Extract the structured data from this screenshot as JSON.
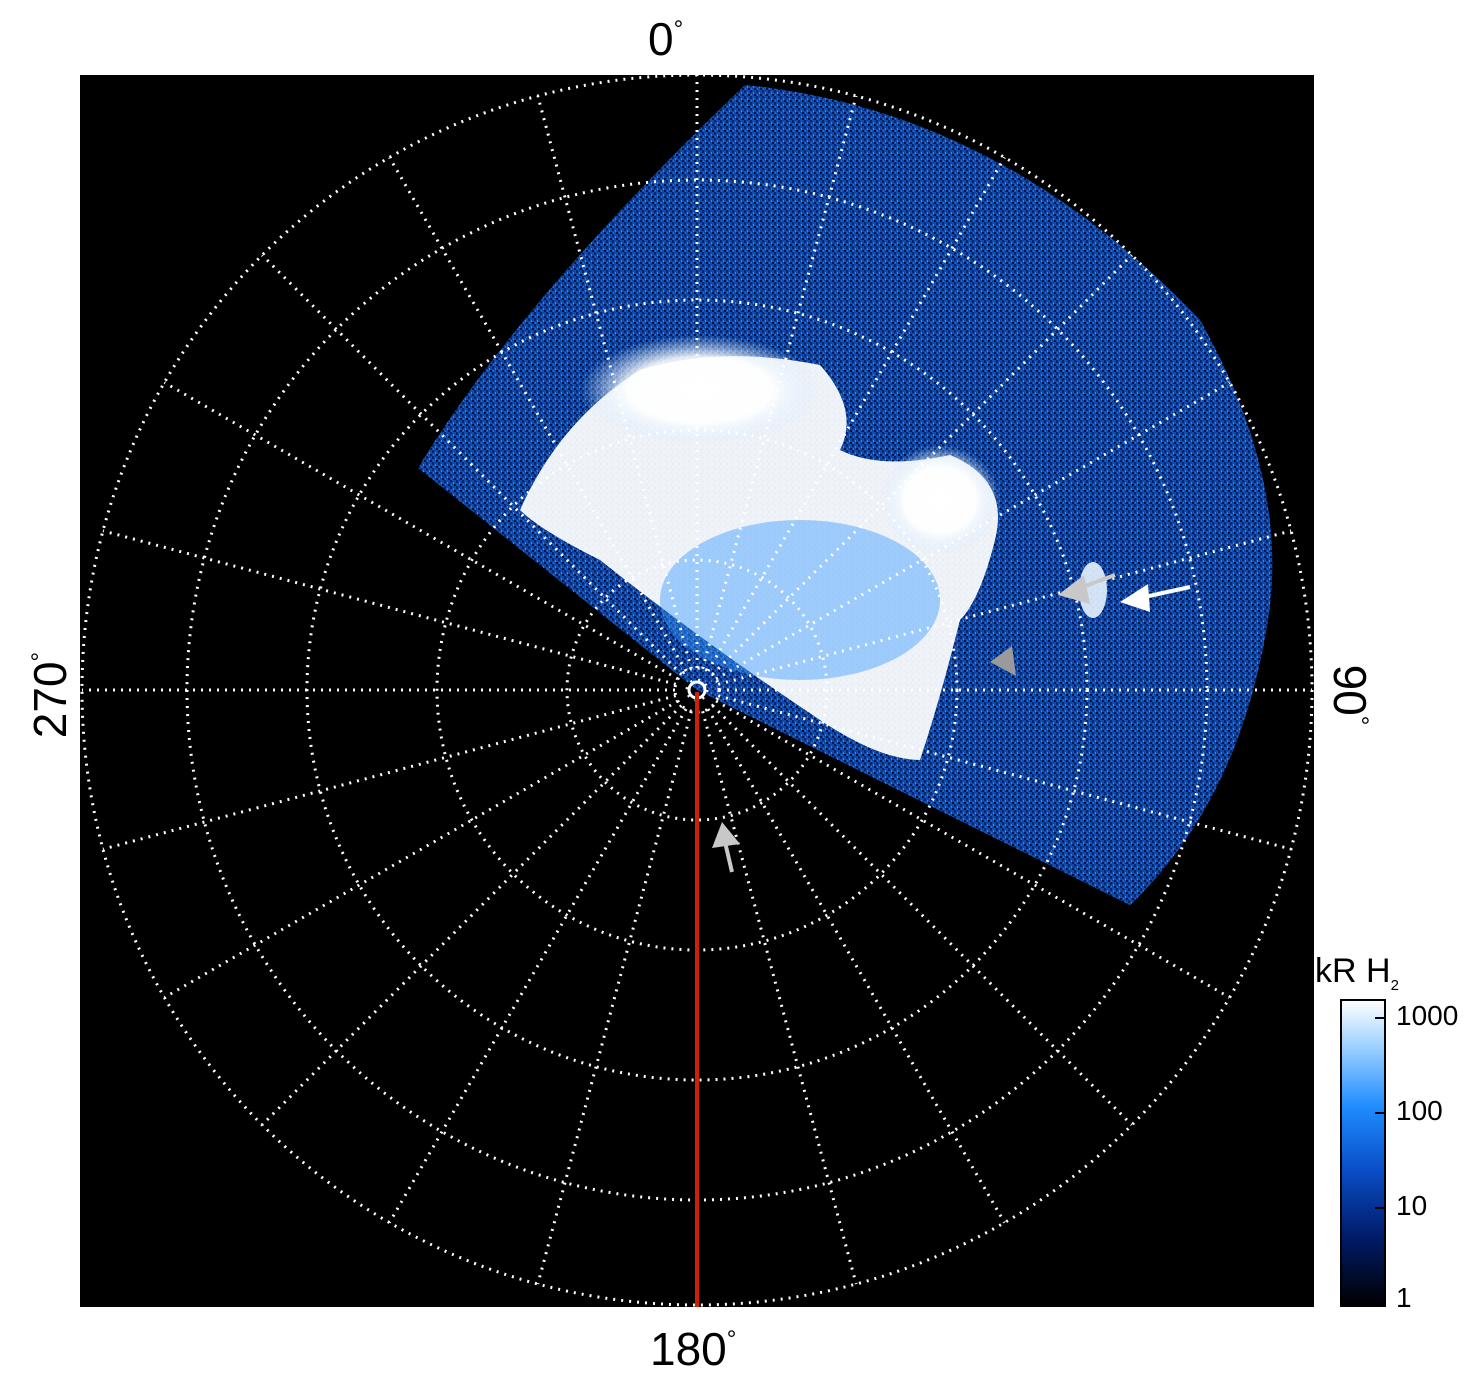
{
  "axis_labels": {
    "top": "0",
    "right": "90",
    "bottom": "180",
    "left": "270",
    "degree_symbol": "°"
  },
  "colorbar": {
    "title": "kR H",
    "title_sub": "2",
    "ticks": [
      "1000",
      "100",
      "10",
      "1"
    ],
    "scale": "log",
    "range": [
      1,
      1500
    ],
    "colors": [
      "#000000",
      "#001a66",
      "#0a4fc9",
      "#1e8cff",
      "#9fd2ff",
      "#ffffff"
    ]
  },
  "colors": {
    "background": "#000000",
    "grid": "#ffffff",
    "meridian_line": "#cc2200",
    "arrow_white": "#ffffff",
    "arrow_gray": "#b0b0b0"
  }
}
